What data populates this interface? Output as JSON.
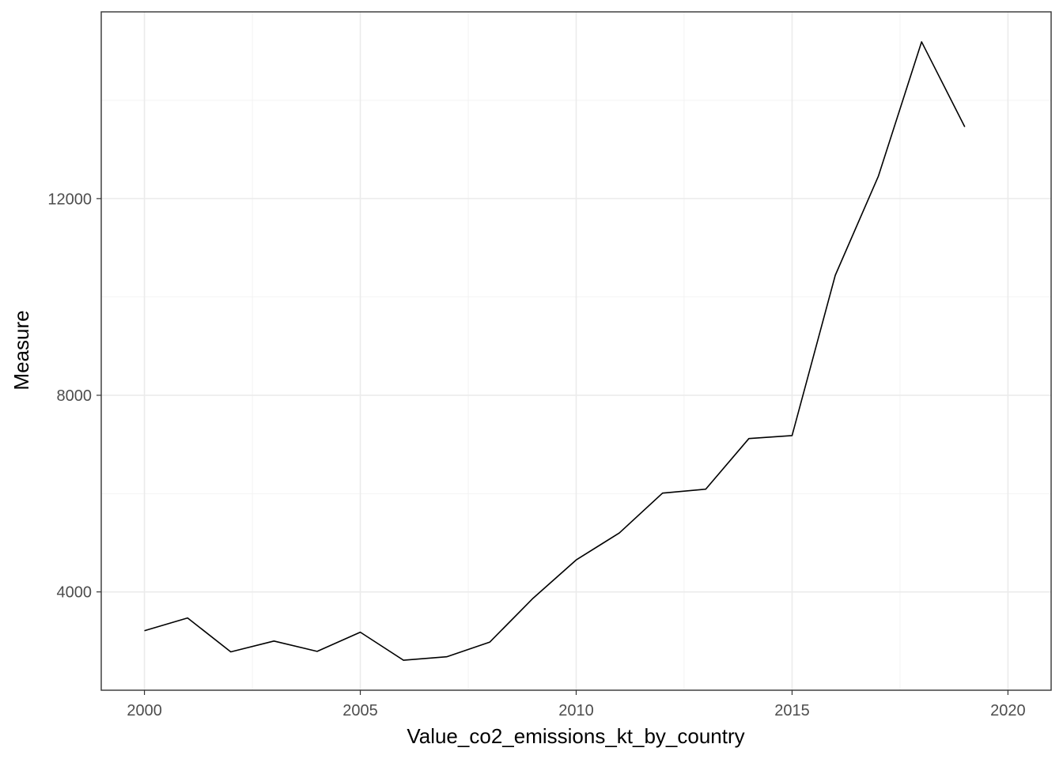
{
  "chart_data": {
    "type": "line",
    "title": "",
    "xlabel": "Value_co2_emissions_kt_by_country",
    "ylabel": "Measure",
    "xlim": [
      1999,
      2021
    ],
    "ylim": [
      2000,
      15800
    ],
    "x_ticks": [
      2000,
      2005,
      2010,
      2015,
      2020
    ],
    "x_tick_labels": [
      "2000",
      "2005",
      "2010",
      "2015",
      "2020"
    ],
    "y_ticks": [
      4000,
      8000,
      12000
    ],
    "y_tick_labels": [
      "4000",
      "8000",
      "12000"
    ],
    "x_minor_ticks": [
      2002.5,
      2007.5,
      2012.5,
      2017.5
    ],
    "y_minor_ticks": [
      6000,
      10000,
      14000
    ],
    "grid": true,
    "legend": "none",
    "line_color": "#000000",
    "series": [
      {
        "x": [
          2000,
          2001,
          2002,
          2003,
          2004,
          2005,
          2006,
          2007,
          2008,
          2009,
          2010,
          2011,
          2012,
          2013,
          2014,
          2015,
          2016,
          2017,
          2018,
          2019
        ],
        "values": [
          3210,
          3470,
          2780,
          3000,
          2790,
          3180,
          2610,
          2680,
          2980,
          3870,
          4650,
          5200,
          6010,
          6090,
          7120,
          7180,
          10440,
          12460,
          15190,
          13460
        ]
      }
    ]
  }
}
